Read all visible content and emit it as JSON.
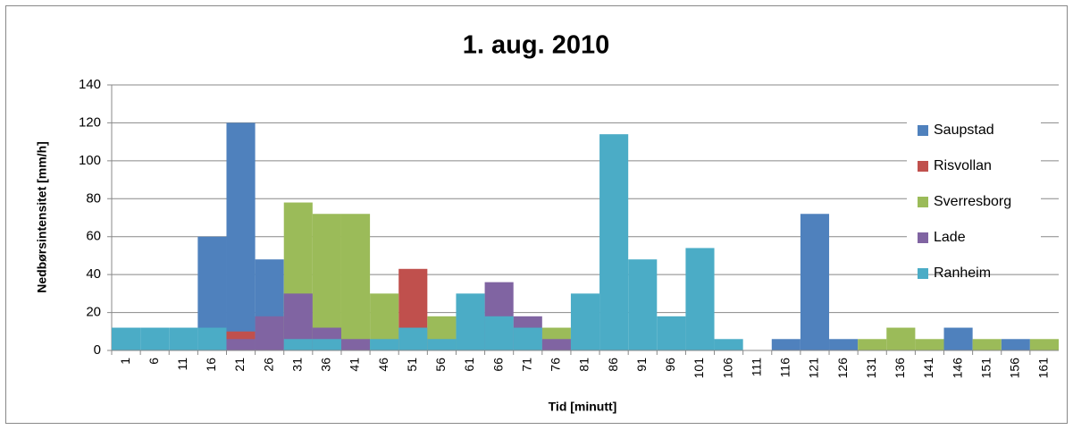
{
  "chart_data": {
    "type": "bar",
    "title": "1. aug. 2010",
    "x_label": "Tid [minutt]",
    "y_label": "Nedbørsintensitet [mm/h]",
    "categories": [
      "1",
      "6",
      "11",
      "16",
      "21",
      "26",
      "31",
      "36",
      "41",
      "46",
      "51",
      "56",
      "61",
      "66",
      "71",
      "76",
      "81",
      "86",
      "91",
      "96",
      "101",
      "106",
      "111",
      "116",
      "121",
      "126",
      "131",
      "136",
      "141",
      "146",
      "151",
      "156",
      "161"
    ],
    "series": [
      {
        "name": "Saupstad",
        "color": "#4f81bd",
        "values": [
          0,
          0,
          0,
          60,
          120,
          48,
          0,
          0,
          0,
          0,
          0,
          0,
          0,
          0,
          0,
          0,
          0,
          0,
          0,
          0,
          0,
          0,
          0,
          6,
          72,
          6,
          0,
          0,
          0,
          12,
          0,
          6,
          0
        ]
      },
      {
        "name": "Risvollan",
        "color": "#c0504d",
        "values": [
          0,
          0,
          0,
          0,
          10,
          0,
          0,
          0,
          0,
          0,
          43,
          0,
          0,
          0,
          0,
          0,
          0,
          0,
          0,
          0,
          0,
          0,
          0,
          0,
          0,
          0,
          0,
          0,
          0,
          0,
          0,
          0,
          0
        ]
      },
      {
        "name": "Sverresborg",
        "color": "#9bbb59",
        "values": [
          0,
          0,
          0,
          0,
          0,
          0,
          78,
          72,
          72,
          30,
          0,
          18,
          0,
          0,
          0,
          12,
          0,
          0,
          0,
          0,
          0,
          0,
          0,
          0,
          0,
          0,
          6,
          12,
          6,
          0,
          6,
          0,
          6
        ]
      },
      {
        "name": "Lade",
        "color": "#8064a2",
        "values": [
          0,
          0,
          0,
          0,
          6,
          18,
          30,
          12,
          6,
          0,
          0,
          0,
          0,
          36,
          18,
          6,
          0,
          0,
          0,
          0,
          0,
          0,
          0,
          0,
          0,
          0,
          0,
          0,
          0,
          0,
          0,
          0,
          0
        ]
      },
      {
        "name": "Ranheim",
        "color": "#4bacc6",
        "values": [
          12,
          12,
          12,
          12,
          0,
          0,
          6,
          6,
          0,
          6,
          12,
          6,
          30,
          18,
          12,
          0,
          30,
          114,
          48,
          18,
          54,
          6,
          0,
          0,
          0,
          0,
          0,
          0,
          0,
          0,
          0,
          0,
          0
        ]
      }
    ],
    "ylim": [
      0,
      140
    ],
    "yticks": [
      0,
      20,
      40,
      60,
      80,
      100,
      120,
      140
    ],
    "grid": true,
    "legend": "right"
  }
}
